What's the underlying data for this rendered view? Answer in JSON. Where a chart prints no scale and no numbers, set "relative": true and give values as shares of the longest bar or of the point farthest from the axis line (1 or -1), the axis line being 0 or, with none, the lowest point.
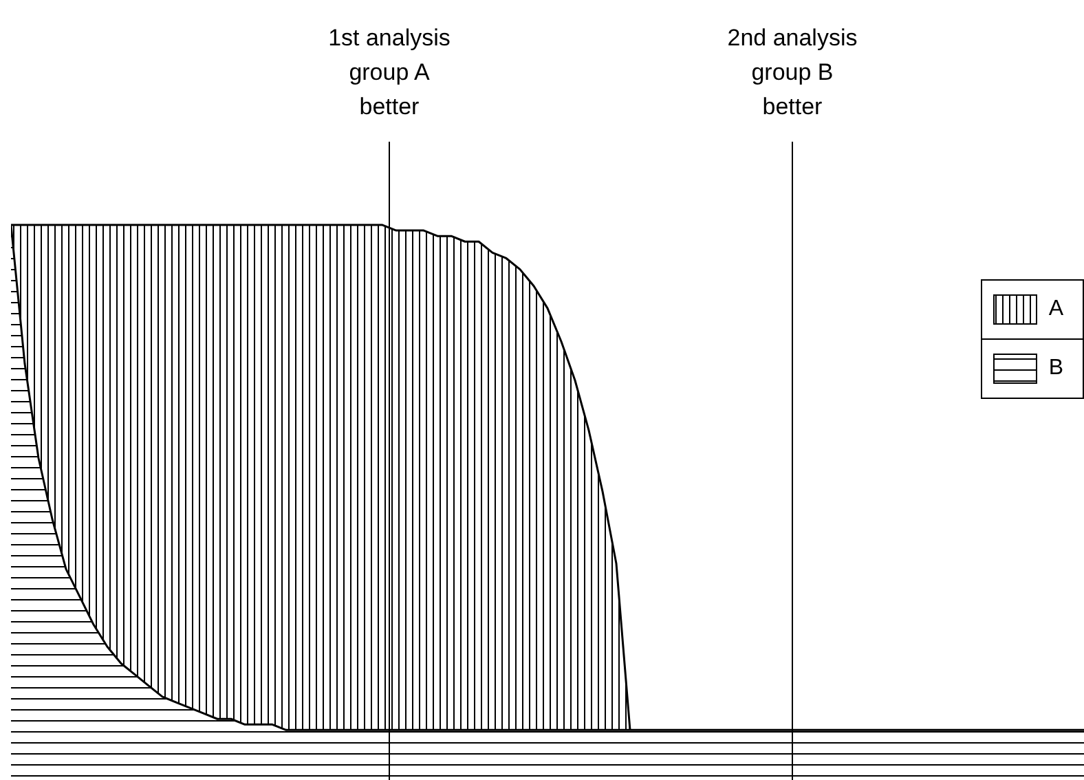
{
  "chart_data": {
    "type": "area",
    "relative": true,
    "grid": false,
    "legend": "right",
    "categories": [
      null,
      null,
      null,
      null,
      null,
      null,
      null,
      null,
      null,
      null,
      null,
      null,
      null,
      null,
      null,
      null,
      null,
      null,
      null,
      null,
      null,
      null,
      null,
      null,
      null,
      null,
      null,
      null,
      null,
      null,
      null,
      null,
      null,
      null,
      null,
      null,
      null,
      null,
      null,
      null,
      null,
      null,
      null,
      null,
      null,
      null,
      null,
      null,
      null,
      null,
      null,
      null,
      null,
      null,
      null,
      null,
      null,
      null,
      null,
      null,
      null,
      null,
      null,
      null,
      null,
      null,
      null,
      null,
      null,
      null,
      null,
      null,
      null,
      null,
      null,
      null,
      null,
      null,
      null
    ],
    "series": [
      {
        "name": "A",
        "color": "#000000",
        "values": [
          1,
          1,
          1,
          1,
          1,
          1,
          1,
          1,
          1,
          1,
          1,
          1,
          1,
          1,
          1,
          1,
          1,
          1,
          1,
          1,
          1,
          1,
          1,
          1,
          1,
          1,
          1,
          1,
          0.99,
          0.99,
          0.99,
          0.98,
          0.98,
          0.97,
          0.97,
          0.95,
          0.94,
          0.92,
          0.89,
          0.85,
          0.79,
          0.72,
          0.63,
          0.52,
          0.39,
          0.09,
          null,
          null,
          null,
          null,
          null,
          null,
          null,
          null,
          null,
          null,
          null,
          null,
          null,
          null,
          null,
          null,
          null,
          null,
          null,
          null,
          null,
          null,
          null,
          null,
          null,
          null,
          null,
          null,
          null,
          null,
          null,
          null,
          null
        ]
      },
      {
        "name": "B",
        "color": "#000000",
        "values": [
          1,
          0.75,
          0.58,
          0.47,
          0.38,
          0.33,
          0.28,
          0.24,
          0.21,
          0.19,
          0.17,
          0.15,
          0.14,
          0.13,
          0.12,
          0.11,
          0.11,
          0.1,
          0.1,
          0.1,
          0.09,
          0.09,
          0.09,
          0.09,
          0.09,
          0.09,
          0.09,
          0.09,
          0.09,
          0.09,
          0.09,
          0.09,
          0.09,
          0.09,
          0.09,
          0.09,
          0.09,
          0.09,
          0.09,
          0.09,
          0.09,
          0.09,
          0.09,
          0.09,
          0.09,
          0.09,
          0.09,
          0.09,
          0.09,
          0.09,
          0.09,
          0.09,
          0.09,
          0.09,
          0.09,
          0.09,
          0.09,
          0.09,
          0.09,
          0.09,
          0.09,
          0.09,
          0.09,
          0.09,
          0.09,
          0.09,
          0.09,
          0.09,
          0.09,
          0.09,
          0.09,
          0.09,
          0.09,
          0.09,
          0.09,
          0.09,
          0.09,
          0.09,
          0.09
        ]
      }
    ],
    "annotations": [
      "1st analysis\ngroup A\nbetter",
      "2nd analysis\ngroup B\nbetter"
    ]
  }
}
